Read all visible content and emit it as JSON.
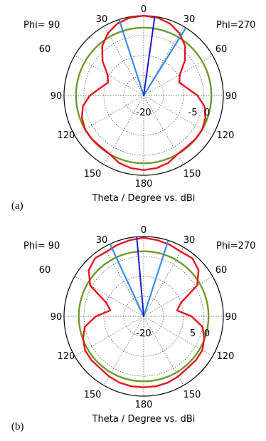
{
  "chart_data": [
    {
      "type": "polar",
      "panel_label": "(a)",
      "xlabel": "Theta / Degree vs. dBi",
      "left_label": "Phi= 90",
      "right_label": "Phi=270",
      "angle_labels": {
        "top": "0",
        "upper_left": "30",
        "upper_right": "30",
        "left_60": "60",
        "right_60": "60",
        "left_90": "90",
        "right_90": "90",
        "left_120": "120",
        "right_120": "120",
        "left_150": "150",
        "right_150": "150",
        "bottom": "180"
      },
      "radial_labels": {
        "inner": "-20",
        "mid": "-5",
        "outer": "0"
      },
      "rlim": [
        -20,
        0
      ],
      "grid": true,
      "colors": {
        "pattern": "#e8141e",
        "reference": "#6e9a2a",
        "main_lobe": "#1a1ad0",
        "beamwidth": "#3a8ee6"
      },
      "series": [
        {
          "id": "pattern",
          "points": [
            [
              0,
              0.0
            ],
            [
              10,
              -0.2
            ],
            [
              20,
              -0.8
            ],
            [
              30,
              -2.0
            ],
            [
              40,
              -3.8
            ],
            [
              50,
              -6.5
            ],
            [
              60,
              -9.5
            ],
            [
              70,
              -10.5
            ],
            [
              80,
              -9.0
            ],
            [
              90,
              -6.5
            ],
            [
              100,
              -4.5
            ],
            [
              110,
              -3.5
            ],
            [
              120,
              -3.0
            ],
            [
              130,
              -3.0
            ],
            [
              140,
              -3.2
            ],
            [
              150,
              -3.0
            ],
            [
              160,
              -2.0
            ],
            [
              170,
              -1.5
            ],
            [
              180,
              -1.3
            ],
            [
              190,
              -1.5
            ],
            [
              200,
              -2.0
            ],
            [
              210,
              -3.0
            ],
            [
              220,
              -3.2
            ],
            [
              230,
              -3.0
            ],
            [
              240,
              -3.0
            ],
            [
              250,
              -3.5
            ],
            [
              260,
              -4.5
            ],
            [
              270,
              -6.5
            ],
            [
              280,
              -9.0
            ],
            [
              290,
              -10.5
            ],
            [
              300,
              -9.5
            ],
            [
              310,
              -6.5
            ],
            [
              320,
              -3.8
            ],
            [
              330,
              -2.0
            ],
            [
              340,
              -0.8
            ],
            [
              350,
              -0.2
            ]
          ]
        },
        {
          "id": "reference",
          "level": -3
        }
      ],
      "main_lobe_angle": 8,
      "beamwidth_angles": [
        -18,
        32
      ]
    },
    {
      "type": "polar",
      "panel_label": "(b)",
      "xlabel": "Theta / Degree vs. dBi",
      "left_label": "Phi= 90",
      "right_label": "Phi=270",
      "angle_labels": {
        "top": "0",
        "upper_left": "30",
        "upper_right": "30",
        "left_60": "60",
        "right_60": "60",
        "left_90": "90",
        "right_90": "90",
        "left_120": "120",
        "right_120": "120",
        "left_150": "150",
        "right_150": "150",
        "bottom": "180"
      },
      "radial_labels": {
        "inner": "-20",
        "mid": "5",
        "outer": "0"
      },
      "rlim": [
        -20,
        0
      ],
      "grid": true,
      "colors": {
        "pattern": "#e8141e",
        "reference": "#6e9a2a",
        "main_lobe": "#1a1ad0",
        "beamwidth": "#3a8ee6"
      },
      "series": [
        {
          "id": "pattern",
          "points": [
            [
              0,
              -0.3
            ],
            [
              10,
              -0.6
            ],
            [
              20,
              -0.9
            ],
            [
              30,
              -1.3
            ],
            [
              40,
              -1.0
            ],
            [
              50,
              -2.0
            ],
            [
              60,
              -4.5
            ],
            [
              70,
              -10.0
            ],
            [
              80,
              -11.5
            ],
            [
              90,
              -8.0
            ],
            [
              100,
              -5.0
            ],
            [
              110,
              -3.8
            ],
            [
              120,
              -3.0
            ],
            [
              130,
              -2.9
            ],
            [
              140,
              -3.0
            ],
            [
              150,
              -2.6
            ],
            [
              160,
              -2.3
            ],
            [
              170,
              -2.2
            ],
            [
              180,
              -2.2
            ],
            [
              190,
              -2.2
            ],
            [
              200,
              -2.3
            ],
            [
              210,
              -2.6
            ],
            [
              220,
              -3.0
            ],
            [
              230,
              -2.9
            ],
            [
              240,
              -3.0
            ],
            [
              250,
              -3.8
            ],
            [
              260,
              -5.0
            ],
            [
              270,
              -8.0
            ],
            [
              280,
              -11.5
            ],
            [
              290,
              -10.0
            ],
            [
              300,
              -4.5
            ],
            [
              310,
              -2.0
            ],
            [
              320,
              -1.0
            ],
            [
              330,
              -1.3
            ],
            [
              340,
              -0.9
            ],
            [
              350,
              -0.6
            ]
          ]
        },
        {
          "id": "reference",
          "level": -3.7
        }
      ],
      "main_lobe_angle": -5,
      "beamwidth_angles": [
        -25,
        18
      ]
    }
  ]
}
